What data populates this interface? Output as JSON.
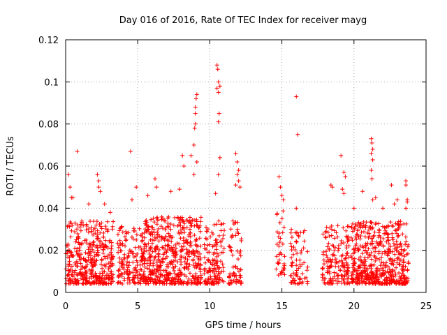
{
  "chart_data": {
    "type": "scatter",
    "title": "Day 016 of 2016, Rate Of TEC Index for receiver mayg",
    "xlabel": "GPS time / hours",
    "ylabel": "ROTI / TECUs",
    "xlim": [
      0,
      25
    ],
    "ylim": [
      0,
      0.12
    ],
    "xticks": [
      0,
      5,
      10,
      15,
      20,
      25
    ],
    "xtick_labels": [
      "0",
      "5",
      "10",
      "15",
      "20",
      "25"
    ],
    "yticks": [
      0,
      0.02,
      0.04,
      0.06,
      0.08,
      0.1,
      0.12
    ],
    "ytick_labels": [
      "0",
      "0.02",
      "0.04",
      "0.06",
      "0.08",
      "0.1",
      "0.12"
    ],
    "grid": true,
    "marker": "+",
    "color": "#ff0000",
    "series": [
      {
        "name": "ROTI",
        "bands": [
          {
            "x_range": [
              0.0,
              3.3
            ],
            "y_range": [
              0.004,
              0.034
            ],
            "density": 2.0
          },
          {
            "x_range": [
              3.6,
              5.3
            ],
            "y_range": [
              0.004,
              0.032
            ],
            "density": 1.4
          },
          {
            "x_range": [
              5.3,
              9.4
            ],
            "y_range": [
              0.004,
              0.036
            ],
            "density": 2.2
          },
          {
            "x_range": [
              9.6,
              11.0
            ],
            "y_range": [
              0.004,
              0.034
            ],
            "density": 1.6
          },
          {
            "x_range": [
              11.3,
              12.2
            ],
            "y_range": [
              0.004,
              0.034
            ],
            "density": 1.2
          },
          {
            "x_range": [
              14.6,
              15.2
            ],
            "y_range": [
              0.008,
              0.04
            ],
            "density": 1.0
          },
          {
            "x_range": [
              15.6,
              16.8
            ],
            "y_range": [
              0.004,
              0.03
            ],
            "density": 1.0
          },
          {
            "x_range": [
              17.8,
              19.7
            ],
            "y_range": [
              0.004,
              0.032
            ],
            "density": 1.4
          },
          {
            "x_range": [
              19.8,
              23.8
            ],
            "y_range": [
              0.004,
              0.034
            ],
            "density": 2.2
          }
        ],
        "outliers": [
          [
            0.2,
            0.056
          ],
          [
            0.3,
            0.05
          ],
          [
            0.4,
            0.045
          ],
          [
            0.5,
            0.045
          ],
          [
            0.8,
            0.067
          ],
          [
            1.6,
            0.042
          ],
          [
            2.2,
            0.056
          ],
          [
            2.3,
            0.053
          ],
          [
            2.3,
            0.05
          ],
          [
            2.4,
            0.048
          ],
          [
            2.7,
            0.042
          ],
          [
            3.1,
            0.038
          ],
          [
            4.5,
            0.067
          ],
          [
            4.6,
            0.044
          ],
          [
            4.9,
            0.05
          ],
          [
            5.7,
            0.046
          ],
          [
            6.2,
            0.054
          ],
          [
            6.3,
            0.05
          ],
          [
            7.3,
            0.048
          ],
          [
            7.9,
            0.049
          ],
          [
            8.1,
            0.065
          ],
          [
            8.2,
            0.06
          ],
          [
            8.7,
            0.065
          ],
          [
            8.9,
            0.07
          ],
          [
            8.95,
            0.078
          ],
          [
            9.0,
            0.08
          ],
          [
            9.0,
            0.085
          ],
          [
            9.0,
            0.088
          ],
          [
            9.05,
            0.092
          ],
          [
            9.1,
            0.094
          ],
          [
            8.9,
            0.056
          ],
          [
            9.1,
            0.062
          ],
          [
            10.5,
            0.108
          ],
          [
            10.55,
            0.106
          ],
          [
            10.6,
            0.1
          ],
          [
            10.5,
            0.097
          ],
          [
            10.7,
            0.098
          ],
          [
            10.6,
            0.095
          ],
          [
            10.65,
            0.085
          ],
          [
            10.6,
            0.081
          ],
          [
            10.7,
            0.064
          ],
          [
            10.6,
            0.056
          ],
          [
            10.4,
            0.047
          ],
          [
            11.8,
            0.066
          ],
          [
            11.9,
            0.062
          ],
          [
            12.0,
            0.058
          ],
          [
            11.9,
            0.056
          ],
          [
            12.0,
            0.053
          ],
          [
            11.8,
            0.051
          ],
          [
            12.1,
            0.05
          ],
          [
            14.8,
            0.055
          ],
          [
            14.9,
            0.05
          ],
          [
            15.0,
            0.046
          ],
          [
            15.1,
            0.044
          ],
          [
            16.0,
            0.093
          ],
          [
            16.1,
            0.075
          ],
          [
            16.0,
            0.04
          ],
          [
            18.4,
            0.051
          ],
          [
            18.5,
            0.05
          ],
          [
            19.1,
            0.065
          ],
          [
            19.3,
            0.057
          ],
          [
            19.4,
            0.055
          ],
          [
            19.2,
            0.049
          ],
          [
            19.3,
            0.047
          ],
          [
            20.0,
            0.04
          ],
          [
            20.6,
            0.048
          ],
          [
            21.2,
            0.073
          ],
          [
            21.25,
            0.071
          ],
          [
            21.3,
            0.068
          ],
          [
            21.2,
            0.066
          ],
          [
            21.3,
            0.063
          ],
          [
            21.2,
            0.058
          ],
          [
            21.25,
            0.054
          ],
          [
            21.5,
            0.045
          ],
          [
            21.3,
            0.044
          ],
          [
            22.0,
            0.04
          ],
          [
            22.6,
            0.051
          ],
          [
            22.8,
            0.042
          ],
          [
            23.0,
            0.044
          ],
          [
            23.6,
            0.053
          ],
          [
            23.6,
            0.051
          ],
          [
            23.7,
            0.044
          ],
          [
            23.7,
            0.043
          ],
          [
            23.6,
            0.04
          ]
        ]
      }
    ]
  }
}
